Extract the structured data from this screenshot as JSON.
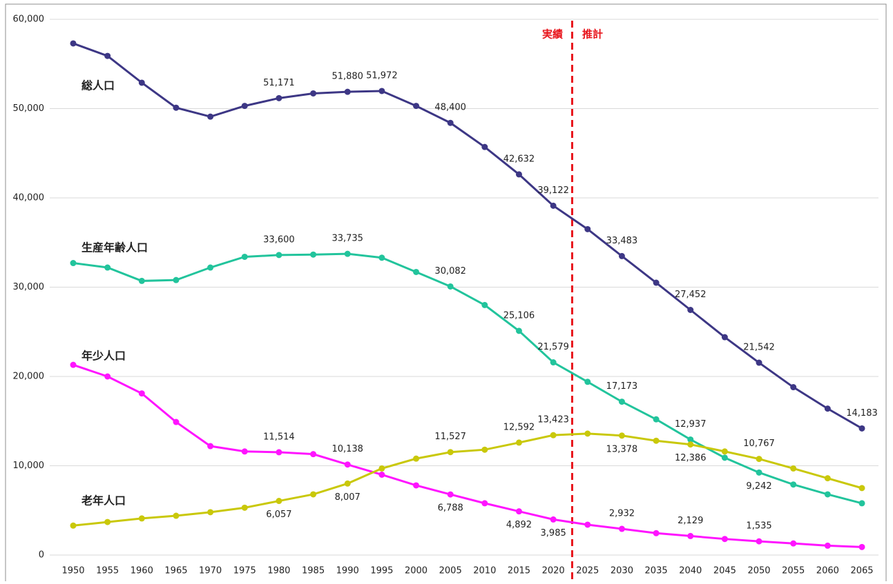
{
  "chart_data": {
    "type": "line",
    "categories": [
      "1950",
      "1955",
      "1960",
      "1965",
      "1970",
      "1975",
      "1980",
      "1985",
      "1990",
      "1995",
      "2000",
      "2005",
      "2010",
      "2015",
      "2020",
      "2025",
      "2030",
      "2035",
      "2040",
      "2045",
      "2050",
      "2055",
      "2060",
      "2065"
    ],
    "ylim": [
      0,
      60000
    ],
    "yticks": [
      0,
      {
        "value": 10000,
        "label": "10,000"
      },
      {
        "value": 20000,
        "label": "20,000"
      },
      {
        "value": 30000,
        "label": "30,000"
      },
      {
        "value": 40000,
        "label": "40,000"
      },
      {
        "value": 50000,
        "label": "50,000"
      },
      {
        "value": 60000,
        "label": "60,000"
      }
    ],
    "grid": true,
    "annotations": [
      "実績",
      "推計"
    ],
    "series": [
      {
        "name": "総人口",
        "color": "#3d3785",
        "values": [
          57300,
          55900,
          52900,
          50100,
          49100,
          50300,
          51171,
          51700,
          51880,
          51972,
          50300,
          48400,
          45700,
          42632,
          39122,
          36500,
          33483,
          30500,
          27452,
          24400,
          21542,
          18800,
          16400,
          14183
        ],
        "value_labels": [
          null,
          null,
          null,
          null,
          null,
          null,
          "51,171",
          null,
          "51,880",
          "51,972",
          null,
          "48,400",
          null,
          "42,632",
          "39,122",
          null,
          "33,483",
          null,
          "27,452",
          null,
          "21,542",
          null,
          null,
          "14,183"
        ]
      },
      {
        "name": "生産年齢人口",
        "color": "#22c49c",
        "values": [
          32700,
          32200,
          30700,
          30800,
          32200,
          33400,
          33600,
          33650,
          33735,
          33300,
          31700,
          30082,
          28000,
          25106,
          21579,
          19400,
          17173,
          15200,
          12937,
          10900,
          9242,
          7900,
          6800,
          5800
        ],
        "value_labels": [
          null,
          null,
          null,
          null,
          null,
          null,
          "33,600",
          null,
          "33,735",
          null,
          null,
          "30,082",
          null,
          "25,106",
          "21,579",
          null,
          "17,173",
          null,
          "12,937",
          null,
          "9,242",
          null,
          null,
          null
        ]
      },
      {
        "name": "年少人口",
        "color": "#ff14ff",
        "values": [
          21300,
          20000,
          18100,
          14900,
          12200,
          11600,
          11514,
          11300,
          10138,
          9000,
          7800,
          6788,
          5800,
          4892,
          3985,
          3400,
          2932,
          2450,
          2129,
          1800,
          1535,
          1300,
          1050,
          900
        ],
        "value_labels": [
          null,
          null,
          null,
          null,
          null,
          null,
          "11,514",
          null,
          "10,138",
          null,
          null,
          "6,788",
          null,
          "4,892",
          "3,985",
          null,
          "2,932",
          null,
          "2,129",
          null,
          "1,535",
          null,
          null,
          null
        ]
      },
      {
        "name": "老年人口",
        "color": "#c9c80a",
        "values": [
          3300,
          3700,
          4100,
          4400,
          4800,
          5300,
          6057,
          6800,
          8007,
          9700,
          10800,
          11527,
          11800,
          12592,
          13423,
          13600,
          13378,
          12800,
          12386,
          11600,
          10767,
          9700,
          8600,
          7500
        ],
        "value_labels": [
          null,
          null,
          null,
          null,
          null,
          null,
          "6,057",
          null,
          "8,007",
          null,
          null,
          "11,527",
          null,
          "12,592",
          "13,423",
          null,
          "13,378",
          null,
          "12,386",
          null,
          "10,767",
          null,
          null,
          null
        ]
      }
    ]
  }
}
